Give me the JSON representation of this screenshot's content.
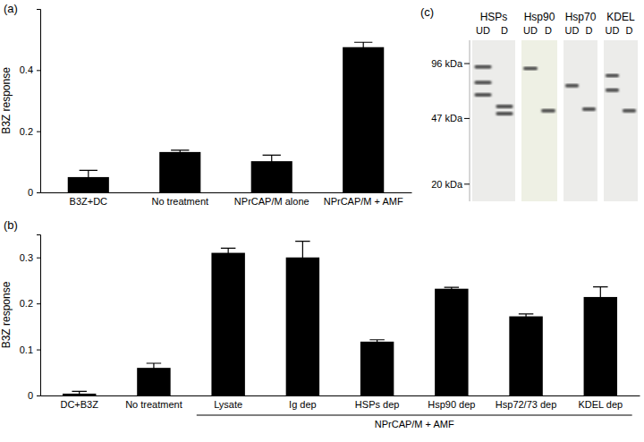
{
  "chart_data": [
    {
      "type": "bar",
      "panel": "(a)",
      "y_label": "B3Z response",
      "categories": [
        "B3Z+DC",
        "No treatment",
        "NPrCAP/M alone",
        "NPrCAP/M + AMF"
      ],
      "values": [
        0.05,
        0.132,
        0.102,
        0.475
      ],
      "errors": [
        0.022,
        0.006,
        0.02,
        0.016
      ],
      "color": "#000000",
      "ylim": [
        0,
        0.6
      ],
      "yticks": [
        0,
        0.2,
        0.4
      ]
    },
    {
      "type": "bar",
      "panel": "(b)",
      "y_label": "B3Z response",
      "categories": [
        "DC+B3Z",
        "No treatment",
        "Lysate",
        "Ig dep",
        "HSPs dep",
        "Hsp90 dep",
        "Hsp72/73 dep",
        "KDEL dep"
      ],
      "values": [
        0.004,
        0.06,
        0.31,
        0.3,
        0.117,
        0.232,
        0.172,
        0.214
      ],
      "errors": [
        0.005,
        0.01,
        0.01,
        0.035,
        0.004,
        0.003,
        0.005,
        0.022
      ],
      "color": "#000000",
      "ylim": [
        0,
        0.35
      ],
      "yticks": [
        0,
        0.1,
        0.2,
        0.3
      ],
      "group": {
        "label": "NPrCAP/M + AMF",
        "categories": [
          "Lysate",
          "Ig dep",
          "HSPs dep",
          "Hsp90 dep",
          "Hsp72/73 dep",
          "KDEL dep"
        ]
      }
    },
    {
      "type": "blot",
      "panel": "(c)",
      "log": "y",
      "ylim": [
        130,
        16
      ],
      "yticks": [
        {
          "value": 96,
          "label": "96 kDa"
        },
        {
          "value": 47,
          "label": "47 kDa"
        },
        {
          "value": 20,
          "label": "20 kDa"
        }
      ],
      "color": "#4a4a4a",
      "blots": [
        {
          "name": "HSPs",
          "lanes": [
            "UD",
            "D"
          ],
          "bands": [
            [
              92,
              75,
              64
            ],
            [
              55,
              50
            ]
          ]
        },
        {
          "name": "Hsp90",
          "lanes": [
            "UD",
            "D"
          ],
          "bands": [
            [
              90
            ],
            [
              52
            ]
          ]
        },
        {
          "name": "Hsp70",
          "lanes": [
            "UD",
            "D"
          ],
          "bands": [
            [
              72
            ],
            [
              53
            ]
          ]
        },
        {
          "name": "KDEL",
          "lanes": [
            "UD",
            "D"
          ],
          "bands": [
            [
              82,
              68
            ],
            [
              52
            ]
          ]
        }
      ]
    }
  ]
}
